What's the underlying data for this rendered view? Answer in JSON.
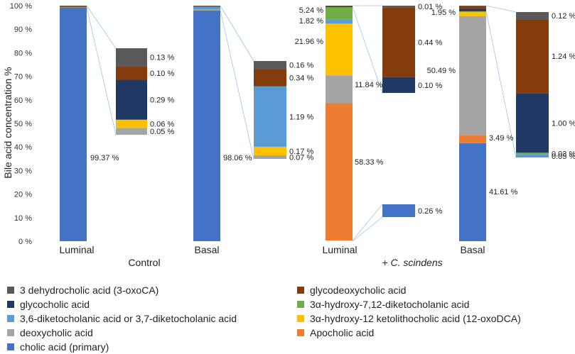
{
  "chart_data": {
    "type": "stacked-bar",
    "ylabel": "Bile acid concentration %",
    "ylim": [
      0,
      100
    ],
    "yticks": [
      "0 %",
      "10 %",
      "20 %",
      "30 %",
      "40 %",
      "50 %",
      "60 %",
      "70 %",
      "80 %",
      "90 %",
      "100 %"
    ],
    "groups": [
      {
        "name": "Control",
        "categories": [
          "Luminal",
          "Basal"
        ]
      },
      {
        "name": "+ C. scindens",
        "categories": [
          "Luminal",
          "Basal"
        ]
      }
    ],
    "legend": [
      {
        "key": "oxoca",
        "label": "3 dehydrocholic acid (3-oxoCA)",
        "color": "#595959"
      },
      {
        "key": "gdca",
        "label": "glycodeoxycholic acid",
        "color": "#843c0c"
      },
      {
        "key": "gca",
        "label": "glycocholic acid",
        "color": "#203864"
      },
      {
        "key": "hdk",
        "label": "3α-hydroxy-7,12-diketocholanic acid",
        "color": "#70ad47"
      },
      {
        "key": "dk",
        "label": "3,6-diketocholanic acid or 3,7-diketocholanic acid",
        "color": "#5b9bd5"
      },
      {
        "key": "oxodca",
        "label": "3α-hydroxy-12 ketolithocholic acid (12-oxoDCA)",
        "color": "#ffc000"
      },
      {
        "key": "dca",
        "label": "deoxycholic acid",
        "color": "#a5a5a5"
      },
      {
        "key": "apo",
        "label": "Apocholic acid",
        "color": "#ed7d31"
      },
      {
        "key": "ca",
        "label": "cholic acid (primary)",
        "color": "#4472c4"
      }
    ],
    "series": [
      {
        "name": "Control Luminal",
        "segments": [
          {
            "key": "ca",
            "value": 99.37,
            "label": "99.37 %"
          },
          {
            "key": "dca",
            "value": 0.05,
            "label": "0.05 %"
          },
          {
            "key": "oxodca",
            "value": 0.06,
            "label": "0.06 %"
          },
          {
            "key": "gca",
            "value": 0.29,
            "label": "0.29 %"
          },
          {
            "key": "gdca",
            "value": 0.1,
            "label": "0.10 %"
          },
          {
            "key": "oxoca",
            "value": 0.13,
            "label": "0.13 %"
          }
        ]
      },
      {
        "name": "Control Basal",
        "segments": [
          {
            "key": "ca",
            "value": 98.06,
            "label": "98.06 %"
          },
          {
            "key": "dca",
            "value": 0.07,
            "label": "0.07 %"
          },
          {
            "key": "oxodca",
            "value": 0.17,
            "label": "0.17 %"
          },
          {
            "key": "dk",
            "value": 1.19,
            "label": "1.19 %"
          },
          {
            "key": "gdca",
            "value": 0.34,
            "label": "0.34 %"
          },
          {
            "key": "oxoca",
            "value": 0.16,
            "label": "0.16 %"
          }
        ]
      },
      {
        "name": "C. scindens Luminal",
        "segments": [
          {
            "key": "ca",
            "value": 0.26,
            "label": "0.26 %"
          },
          {
            "key": "apo",
            "value": 58.33,
            "label": "58.33 %"
          },
          {
            "key": "dca",
            "value": 11.84,
            "label": "11.84 %"
          },
          {
            "key": "oxodca",
            "value": 21.96,
            "label": "21.96 %"
          },
          {
            "key": "dk",
            "value": 1.82,
            "label": "1.82 %"
          },
          {
            "key": "hdk",
            "value": 5.24,
            "label": "5.24 %"
          },
          {
            "key": "gca",
            "value": 0.1,
            "label": "0.10 %"
          },
          {
            "key": "gdca",
            "value": 0.44,
            "label": "0.44 %"
          },
          {
            "key": "oxoca",
            "value": 0.01,
            "label": "0.01 %"
          }
        ]
      },
      {
        "name": "C. scindens Basal",
        "segments": [
          {
            "key": "ca",
            "value": 41.61,
            "label": "41.61 %"
          },
          {
            "key": "apo",
            "value": 3.49,
            "label": "3.49 %"
          },
          {
            "key": "dca",
            "value": 50.49,
            "label": "50.49 %"
          },
          {
            "key": "oxodca",
            "value": 1.95,
            "label": "1.95 %"
          },
          {
            "key": "dk",
            "value": 0.05,
            "label": "0.05 %"
          },
          {
            "key": "hdk",
            "value": 0.03,
            "label": "0.03 %"
          },
          {
            "key": "gca",
            "value": 1.0,
            "label": "1.00 %"
          },
          {
            "key": "gdca",
            "value": 1.24,
            "label": "1.24 %"
          },
          {
            "key": "oxoca",
            "value": 0.12,
            "label": "0.12 %"
          }
        ]
      }
    ]
  }
}
